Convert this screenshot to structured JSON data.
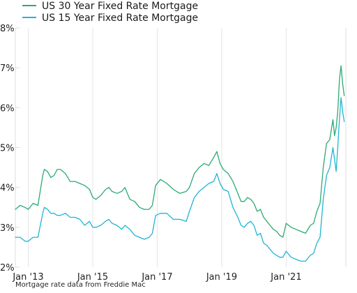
{
  "chart_data": {
    "type": "line",
    "title": "",
    "xlabel": "",
    "ylabel": "",
    "legend_position": "top-left",
    "grid": "vertical",
    "ylim": [
      2,
      8
    ],
    "xlim": [
      2012.6,
      2022.85
    ],
    "y_ticks": [
      {
        "value": 2,
        "label": "2%"
      },
      {
        "value": 3,
        "label": "3%"
      },
      {
        "value": 4,
        "label": "4%"
      },
      {
        "value": 5,
        "label": "5%"
      },
      {
        "value": 6,
        "label": "6%"
      },
      {
        "value": 7,
        "label": "7%"
      },
      {
        "value": 8,
        "label": "8%"
      }
    ],
    "x_ticks": [
      {
        "value": 2013.0,
        "label": "Jan '13"
      },
      {
        "value": 2015.0,
        "label": "Jan '15"
      },
      {
        "value": 2017.0,
        "label": "Jan '17"
      },
      {
        "value": 2019.0,
        "label": "Jan '19"
      },
      {
        "value": 2021.0,
        "label": "Jan '21"
      }
    ],
    "series": [
      {
        "name": "US 30 Year Fixed Rate Mortgage",
        "color": "#2baa72",
        "x": [
          2012.6,
          2012.75,
          2012.9,
          2013.0,
          2013.15,
          2013.3,
          2013.45,
          2013.5,
          2013.6,
          2013.7,
          2013.8,
          2013.9,
          2014.0,
          2014.15,
          2014.3,
          2014.45,
          2014.6,
          2014.75,
          2014.9,
          2015.0,
          2015.1,
          2015.25,
          2015.4,
          2015.5,
          2015.6,
          2015.75,
          2015.9,
          2016.0,
          2016.15,
          2016.3,
          2016.45,
          2016.6,
          2016.75,
          2016.85,
          2016.95,
          2017.1,
          2017.3,
          2017.5,
          2017.7,
          2017.9,
          2018.0,
          2018.15,
          2018.3,
          2018.45,
          2018.6,
          2018.75,
          2018.85,
          2018.95,
          2019.05,
          2019.2,
          2019.35,
          2019.5,
          2019.6,
          2019.7,
          2019.8,
          2019.9,
          2020.0,
          2020.1,
          2020.2,
          2020.3,
          2020.4,
          2020.5,
          2020.6,
          2020.7,
          2020.8,
          2020.9,
          2021.0,
          2021.15,
          2021.3,
          2021.45,
          2021.6,
          2021.75,
          2021.85,
          2021.95,
          2022.05,
          2022.15,
          2022.25,
          2022.35,
          2022.45,
          2022.5,
          2022.55,
          2022.6,
          2022.65,
          2022.7,
          2022.75,
          2022.8
        ],
        "y": [
          3.45,
          3.55,
          3.5,
          3.45,
          3.6,
          3.55,
          4.3,
          4.45,
          4.4,
          4.25,
          4.3,
          4.45,
          4.45,
          4.35,
          4.15,
          4.15,
          4.1,
          4.05,
          3.95,
          3.75,
          3.7,
          3.8,
          3.95,
          4.0,
          3.9,
          3.85,
          3.9,
          4.0,
          3.7,
          3.65,
          3.5,
          3.45,
          3.45,
          3.55,
          4.05,
          4.2,
          4.1,
          3.95,
          3.85,
          3.9,
          4.0,
          4.35,
          4.5,
          4.6,
          4.55,
          4.75,
          4.9,
          4.6,
          4.45,
          4.35,
          4.15,
          3.85,
          3.65,
          3.65,
          3.75,
          3.7,
          3.6,
          3.4,
          3.45,
          3.25,
          3.15,
          3.05,
          2.95,
          2.9,
          2.8,
          2.75,
          3.1,
          3.0,
          2.95,
          2.9,
          2.85,
          3.05,
          3.1,
          3.4,
          3.6,
          4.5,
          5.1,
          5.2,
          5.7,
          5.3,
          5.5,
          5.9,
          6.7,
          7.05,
          6.6,
          6.3
        ]
      },
      {
        "name": "US 15 Year Fixed Rate Mortgage",
        "color": "#1fb5d4",
        "x": [
          2012.6,
          2012.75,
          2012.9,
          2013.0,
          2013.15,
          2013.3,
          2013.45,
          2013.5,
          2013.6,
          2013.7,
          2013.8,
          2013.9,
          2014.0,
          2014.15,
          2014.3,
          2014.45,
          2014.6,
          2014.75,
          2014.9,
          2015.0,
          2015.1,
          2015.25,
          2015.4,
          2015.5,
          2015.6,
          2015.75,
          2015.9,
          2016.0,
          2016.15,
          2016.3,
          2016.45,
          2016.6,
          2016.75,
          2016.85,
          2016.95,
          2017.1,
          2017.3,
          2017.5,
          2017.7,
          2017.9,
          2018.0,
          2018.15,
          2018.3,
          2018.45,
          2018.6,
          2018.75,
          2018.85,
          2018.95,
          2019.05,
          2019.2,
          2019.35,
          2019.5,
          2019.6,
          2019.7,
          2019.8,
          2019.9,
          2020.0,
          2020.1,
          2020.2,
          2020.3,
          2020.4,
          2020.5,
          2020.6,
          2020.7,
          2020.8,
          2020.9,
          2021.0,
          2021.15,
          2021.3,
          2021.45,
          2021.6,
          2021.75,
          2021.85,
          2021.95,
          2022.05,
          2022.15,
          2022.25,
          2022.35,
          2022.45,
          2022.5,
          2022.55,
          2022.6,
          2022.65,
          2022.7,
          2022.75,
          2022.8
        ],
        "y": [
          2.75,
          2.75,
          2.65,
          2.65,
          2.75,
          2.75,
          3.35,
          3.5,
          3.45,
          3.35,
          3.35,
          3.3,
          3.3,
          3.35,
          3.25,
          3.25,
          3.2,
          3.05,
          3.15,
          3.0,
          3.0,
          3.05,
          3.15,
          3.2,
          3.1,
          3.05,
          2.95,
          3.05,
          2.95,
          2.8,
          2.75,
          2.7,
          2.75,
          2.85,
          3.3,
          3.35,
          3.35,
          3.2,
          3.2,
          3.15,
          3.4,
          3.75,
          3.9,
          4.0,
          4.1,
          4.15,
          4.35,
          4.1,
          3.95,
          3.9,
          3.5,
          3.25,
          3.05,
          3.0,
          3.1,
          3.15,
          3.05,
          2.8,
          2.85,
          2.6,
          2.55,
          2.45,
          2.35,
          2.3,
          2.25,
          2.25,
          2.4,
          2.25,
          2.2,
          2.15,
          2.15,
          2.3,
          2.35,
          2.6,
          2.75,
          3.7,
          4.3,
          4.5,
          5.0,
          4.7,
          4.4,
          5.0,
          5.7,
          6.25,
          5.9,
          5.65
        ]
      }
    ],
    "source_note": "Mortgage rate data from Freddie Mac"
  }
}
